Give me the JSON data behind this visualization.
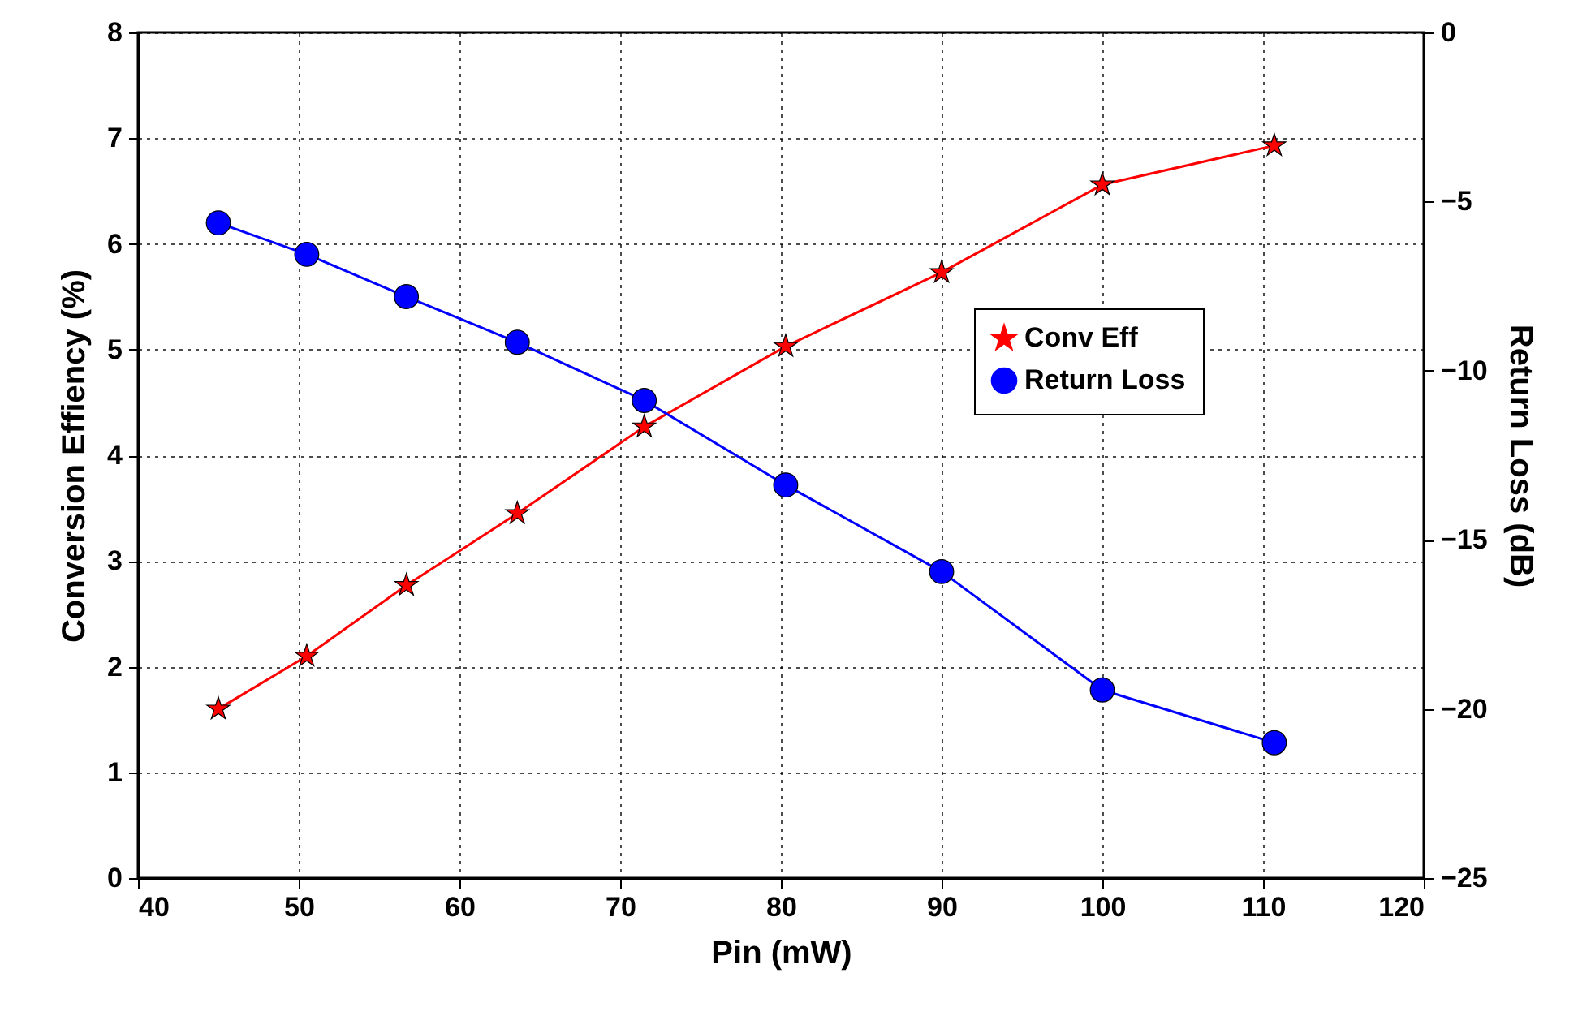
{
  "chart_data": {
    "type": "line",
    "xlabel": "Pin (mW)",
    "ylabel": "Conversion Effiency (%)",
    "y2label": "Return Loss (dB)",
    "xlim": [
      40,
      120
    ],
    "xticks": [
      40,
      50,
      60,
      70,
      80,
      90,
      100,
      110,
      120
    ],
    "ylim": [
      0,
      8
    ],
    "yticks": [
      0,
      1,
      2,
      3,
      4,
      5,
      6,
      7,
      8
    ],
    "y2lim": [
      -25,
      0
    ],
    "y2ticks": [
      -25,
      -20,
      -15,
      -10,
      -5,
      0
    ],
    "grid": true,
    "legend": "right",
    "series": [
      {
        "name": "Conv Eff",
        "color": "#ff0000",
        "marker": "star",
        "x": [
          45,
          50.5,
          56.7,
          63.6,
          71.5,
          80.3,
          90,
          100,
          110.7
        ],
        "values": [
          1.6,
          2.1,
          2.77,
          3.45,
          4.27,
          5.03,
          5.73,
          6.56,
          6.93
        ]
      },
      {
        "name": "Return Loss",
        "color": "#0000ff",
        "marker": "circle",
        "axis": "y2",
        "x": [
          45,
          50.5,
          56.7,
          63.6,
          71.5,
          80.3,
          90,
          100,
          110.7
        ],
        "values": [
          -5.63,
          -6.56,
          -7.81,
          -9.16,
          -10.88,
          -13.38,
          -15.94,
          -19.44,
          -21.0
        ]
      }
    ]
  }
}
